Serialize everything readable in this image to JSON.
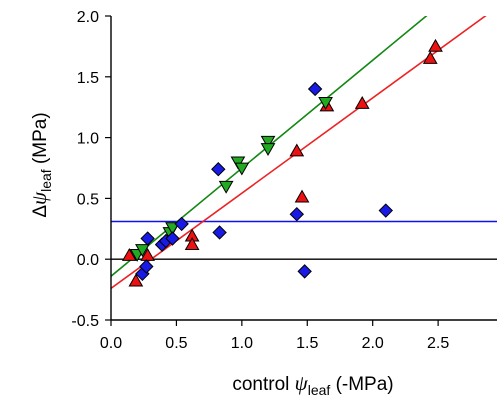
{
  "chart_data": {
    "type": "scatter",
    "title": "",
    "xlabel": {
      "prefix": "control ",
      "symbol": "ψ",
      "subscript": "leaf",
      "suffix": " (-MPa)"
    },
    "ylabel": {
      "prefix": "Δ",
      "symbol": "ψ",
      "subscript": "leaf",
      "suffix": " (MPa)"
    },
    "xlim": [
      0,
      2.95
    ],
    "ylim": [
      -0.5,
      2.0
    ],
    "x_ticks": [
      "0.0",
      "0.5",
      "1.0",
      "1.5",
      "2.0",
      "2.5"
    ],
    "y_ticks": [
      "-0.5",
      "0.0",
      "0.5",
      "1.0",
      "1.5",
      "2.0"
    ],
    "grid": false,
    "zero_line": {
      "y": 0,
      "color": "#000000"
    },
    "reference_lines": [
      {
        "color": "#1010ee",
        "x": [
          0,
          2.95
        ],
        "y": [
          0.31,
          0.31
        ]
      },
      {
        "color": "#ee2222",
        "x": [
          0,
          2.95
        ],
        "y": [
          -0.24,
          2.07
        ]
      },
      {
        "color": "#118811",
        "x": [
          0,
          2.95
        ],
        "y": [
          -0.14,
          2.48
        ]
      }
    ],
    "series": [
      {
        "marker": "triangle-up",
        "color": "#ee1111",
        "points": [
          [
            0.14,
            0.03
          ],
          [
            0.19,
            -0.18
          ],
          [
            0.28,
            0.03
          ],
          [
            0.62,
            0.19
          ],
          [
            0.62,
            0.12
          ],
          [
            1.42,
            0.89
          ],
          [
            1.46,
            0.51
          ],
          [
            1.65,
            1.26
          ],
          [
            1.92,
            1.28
          ],
          [
            2.44,
            1.65
          ],
          [
            2.48,
            1.75
          ]
        ]
      },
      {
        "marker": "triangle-down",
        "color": "#22aa22",
        "points": [
          [
            0.2,
            0.04
          ],
          [
            0.24,
            0.08
          ],
          [
            0.45,
            0.22
          ],
          [
            0.47,
            0.26
          ],
          [
            0.88,
            0.6
          ],
          [
            0.97,
            0.8
          ],
          [
            1.0,
            0.75
          ],
          [
            1.2,
            0.97
          ],
          [
            1.2,
            0.91
          ],
          [
            1.64,
            1.29
          ]
        ]
      },
      {
        "marker": "diamond",
        "color": "#1a1ae6",
        "points": [
          [
            0.24,
            -0.12
          ],
          [
            0.27,
            -0.06
          ],
          [
            0.28,
            0.17
          ],
          [
            0.39,
            0.12
          ],
          [
            0.42,
            0.15
          ],
          [
            0.47,
            0.17
          ],
          [
            0.54,
            0.29
          ],
          [
            0.82,
            0.74
          ],
          [
            0.83,
            0.22
          ],
          [
            1.42,
            0.37
          ],
          [
            1.48,
            -0.1
          ],
          [
            1.56,
            1.4
          ],
          [
            2.1,
            0.4
          ]
        ]
      }
    ]
  }
}
